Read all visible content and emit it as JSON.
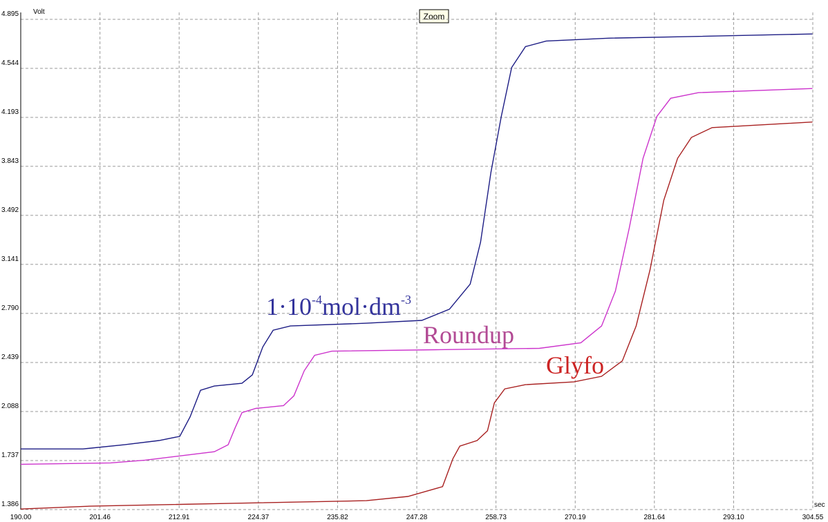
{
  "chart_data": {
    "type": "line",
    "y_unit": "Volt",
    "x_unit": "sec",
    "button": "Zoom",
    "grid": true,
    "xlim": [
      190.0,
      304.55
    ],
    "ylim": [
      1.386,
      4.895
    ],
    "xticks": [
      {
        "value": 190,
        "label": "190.00"
      },
      201.46,
      212.91,
      224.37,
      235.82,
      247.28,
      258.73,
      270.19,
      281.64,
      {
        "value": 293.1,
        "label": "293.10"
      },
      304.55
    ],
    "yticks": [
      1.386,
      1.737,
      2.088,
      2.439,
      {
        "value": 2.79,
        "label": "2.790"
      },
      3.141,
      3.492,
      3.843,
      4.193,
      4.544,
      4.895
    ],
    "series": [
      {
        "color": "#1c1c84",
        "x": [
          190,
          199,
          205,
          210,
          213,
          214.5,
          216,
          218,
          222,
          223.5,
          225,
          226.5,
          229,
          240,
          248,
          252,
          255,
          256.5,
          258,
          259.5,
          261,
          263,
          266,
          275,
          285,
          304.5
        ],
        "values": [
          1.82,
          1.82,
          1.85,
          1.88,
          1.91,
          2.05,
          2.24,
          2.27,
          2.29,
          2.35,
          2.55,
          2.67,
          2.7,
          2.72,
          2.74,
          2.82,
          3.0,
          3.3,
          3.8,
          4.2,
          4.55,
          4.7,
          4.74,
          4.76,
          4.77,
          4.79
        ]
      },
      {
        "color": "#cc33cc",
        "x": [
          190,
          203,
          208,
          213,
          218,
          220,
          221,
          222,
          224,
          228,
          229.5,
          231,
          232.5,
          235,
          250,
          265,
          271,
          274,
          276,
          278,
          280,
          282,
          284,
          288,
          304.5
        ],
        "values": [
          1.71,
          1.72,
          1.74,
          1.77,
          1.8,
          1.85,
          1.97,
          2.08,
          2.11,
          2.13,
          2.2,
          2.38,
          2.49,
          2.52,
          2.53,
          2.54,
          2.58,
          2.7,
          2.95,
          3.4,
          3.9,
          4.2,
          4.33,
          4.37,
          4.4
        ]
      },
      {
        "color": "#a82020",
        "x": [
          190,
          200,
          220,
          240,
          246,
          251,
          252.5,
          253.5,
          256,
          257.5,
          258.5,
          260,
          263,
          270,
          274,
          277,
          279,
          281,
          283,
          285,
          287,
          290,
          304.5
        ],
        "values": [
          1.39,
          1.41,
          1.43,
          1.45,
          1.48,
          1.55,
          1.75,
          1.84,
          1.88,
          1.95,
          2.15,
          2.25,
          2.28,
          2.3,
          2.34,
          2.45,
          2.7,
          3.1,
          3.6,
          3.9,
          4.05,
          4.12,
          4.16
        ]
      }
    ],
    "annotations": [
      {
        "parts": [
          "1·10",
          "-4",
          "mol·dm",
          "-3"
        ],
        "color": "#34349c"
      },
      {
        "text": "Roundup",
        "color": "#b24a94"
      },
      {
        "text": "Glyfo",
        "color": "#cc2424"
      }
    ]
  }
}
